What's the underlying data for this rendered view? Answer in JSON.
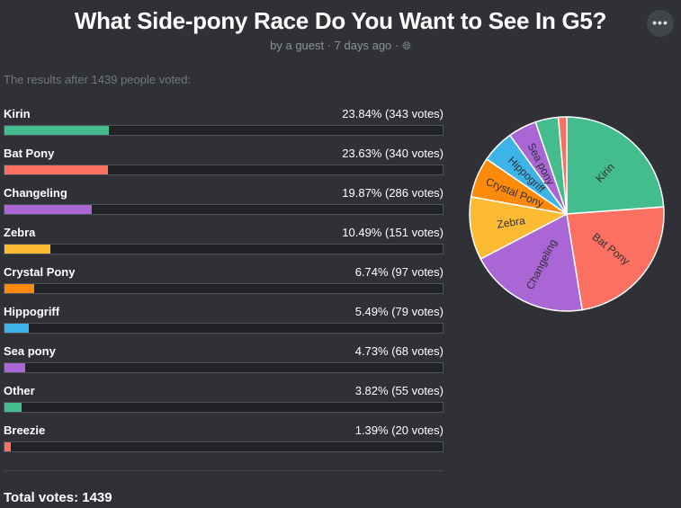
{
  "header": {
    "title": "What Side-pony Race Do You Want to See In G5?",
    "byline": "by a guest · 7 days ago ·",
    "more_label": "•••"
  },
  "results_note": "The results after 1439 people voted:",
  "total_label": "Total votes: 1439",
  "colors": {
    "background": "#2f3136",
    "bar_track": "#202225"
  },
  "chart_data": {
    "type": "pie",
    "categories": [
      "Kirin",
      "Bat Pony",
      "Changeling",
      "Zebra",
      "Crystal Pony",
      "Hippogriff",
      "Sea pony",
      "Other",
      "Breezie"
    ],
    "values": [
      343,
      340,
      286,
      151,
      97,
      79,
      68,
      55,
      20
    ],
    "percents": [
      23.84,
      23.63,
      19.87,
      10.49,
      6.74,
      5.49,
      4.73,
      3.82,
      1.39
    ],
    "display": [
      "23.84% (343 votes)",
      "23.63% (340 votes)",
      "19.87% (286 votes)",
      "10.49% (151 votes)",
      "6.74% (97 votes)",
      "5.49% (79 votes)",
      "4.73% (68 votes)",
      "3.82% (55 votes)",
      "1.39% (20 votes)"
    ],
    "colors": [
      "#43bd8e",
      "#fb7061",
      "#a966d4",
      "#fdbb34",
      "#fe8a0b",
      "#3db4e8",
      "#a966d4",
      "#43bd8e",
      "#fb7061"
    ],
    "pie_labels": [
      "Kirin",
      "Bat Pony",
      "Changeling",
      "Zebra",
      "Crystal Pony",
      "Hippogriff",
      "Sea pony",
      "",
      ""
    ],
    "total": 1439
  }
}
